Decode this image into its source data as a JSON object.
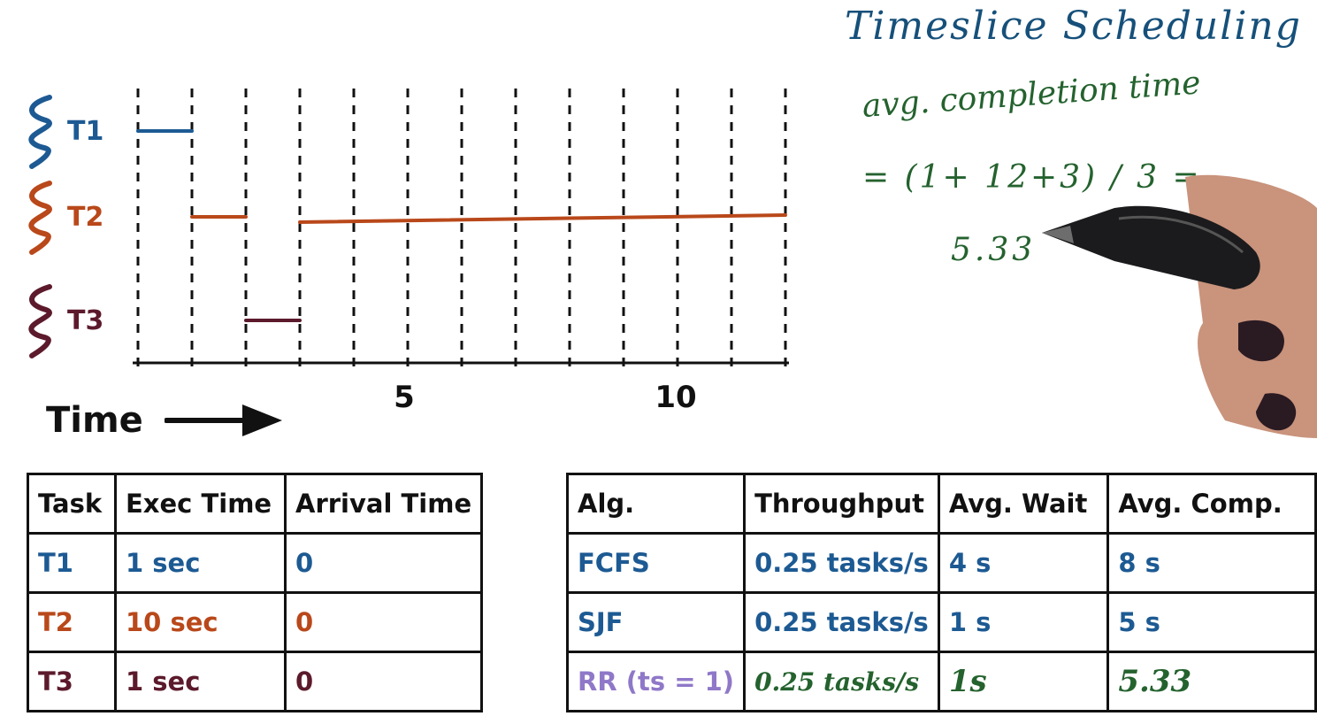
{
  "title": "Timeslice Scheduling",
  "formula": {
    "line1": "avg. completion time",
    "line2": "= (1+ 12+3) / 3 =",
    "line3": "5.33"
  },
  "timeline": {
    "rows": [
      {
        "label": "T1",
        "color": "#1d5a93"
      },
      {
        "label": "T2",
        "color": "#b9481a"
      },
      {
        "label": "T3",
        "color": "#5c1a2c"
      }
    ],
    "ticks": [
      "5",
      "10"
    ],
    "axis_label": "Time",
    "segments": [
      {
        "task": "T1",
        "start": 0,
        "end": 1
      },
      {
        "task": "T2",
        "start": 1,
        "end": 2
      },
      {
        "task": "T3",
        "start": 2,
        "end": 3
      },
      {
        "task": "T2",
        "start": 3,
        "end": 12
      }
    ]
  },
  "task_table": {
    "headers": [
      "Task",
      "Exec Time",
      "Arrival Time"
    ],
    "rows": [
      {
        "task": "T1",
        "exec": "1 sec",
        "arrival": "0",
        "color": "#1d5a93"
      },
      {
        "task": "T2",
        "exec": "10 sec",
        "arrival": "0",
        "color": "#b9481a"
      },
      {
        "task": "T3",
        "exec": "1 sec",
        "arrival": "0",
        "color": "#5c1a2c"
      }
    ]
  },
  "alg_table": {
    "headers": [
      "Alg.",
      "Throughput",
      "Avg. Wait",
      "Avg. Comp."
    ],
    "rows": [
      {
        "alg": "FCFS",
        "throughput": "0.25 tasks/s",
        "wait": "4 s",
        "comp": "8 s"
      },
      {
        "alg": "SJF",
        "throughput": "0.25 tasks/s",
        "wait": "1 s",
        "comp": "5 s"
      },
      {
        "alg": "RR (ts = 1)",
        "throughput": "0.25 tasks/s",
        "wait": "1s",
        "comp": "5.33"
      }
    ]
  }
}
